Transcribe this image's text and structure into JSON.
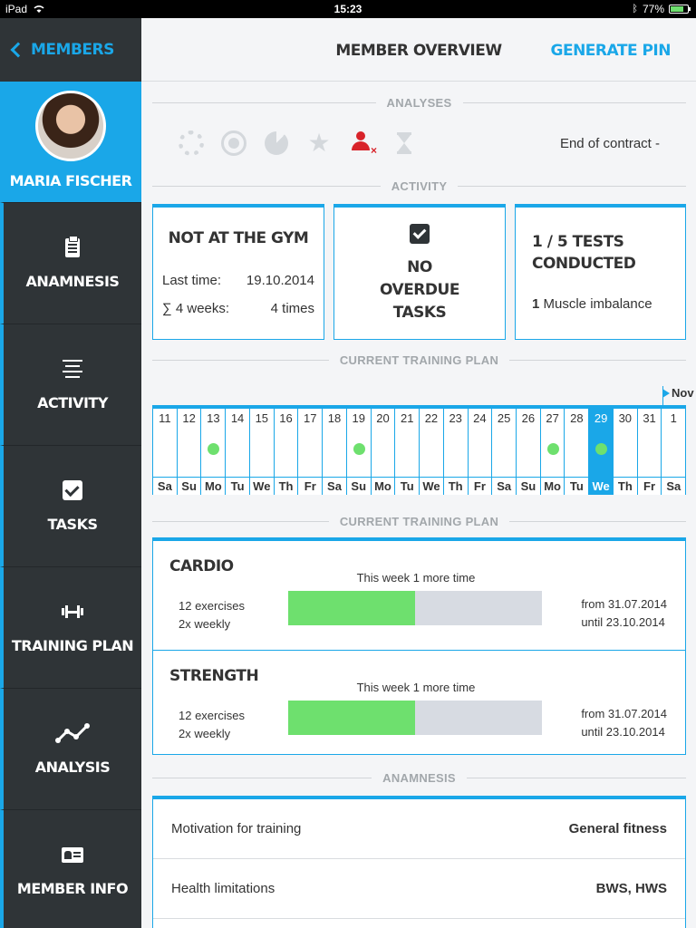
{
  "status_bar": {
    "device": "iPad",
    "time": "15:23",
    "battery": "77%",
    "battery_level": 0.77
  },
  "sidebar": {
    "back_label": "MEMBERS",
    "profile_name": "MARIA FISCHER",
    "items": [
      {
        "label": "ANAMNESIS",
        "icon": "clipboard-icon"
      },
      {
        "label": "ACTIVITY",
        "icon": "list-icon"
      },
      {
        "label": "TASKS",
        "icon": "checkbox-icon"
      },
      {
        "label": "TRAINING PLAN",
        "icon": "dumbbell-icon"
      },
      {
        "label": "ANALYSIS",
        "icon": "line-chart-icon"
      },
      {
        "label": "MEMBER INFO",
        "icon": "id-card-icon"
      }
    ]
  },
  "header": {
    "title": "MEMBER OVERVIEW",
    "action": "GENERATE PIN"
  },
  "analyses": {
    "heading": "ANALYSES",
    "icons": [
      "dotted-ring-icon",
      "target-icon",
      "pie-icon",
      "star-icon",
      "person-x-icon",
      "hourglass-icon"
    ],
    "end_of_contract": "End of contract -",
    "alert_color": "#d8232a"
  },
  "activity": {
    "heading": "ACTIVITY",
    "gym": {
      "title": "NOT AT THE GYM",
      "last_label": "Last time:",
      "last_value": "19.10.2014",
      "weeks_label": "∑ 4 weeks:",
      "weeks_value": "4 times"
    },
    "tasks": {
      "line1": "NO",
      "line2": "OVERDUE",
      "line3": "TASKS"
    },
    "tests": {
      "line1": "1 / 5 TESTS",
      "line2": "CONDUCTED",
      "count": "1",
      "detail": "Muscle imbalance"
    }
  },
  "calendar": {
    "heading": "CURRENT TRAINING PLAN",
    "month_marker": "Nov",
    "days": [
      {
        "num": "11",
        "dn": "Sa",
        "dot": false,
        "today": false
      },
      {
        "num": "12",
        "dn": "Su",
        "dot": false,
        "today": false
      },
      {
        "num": "13",
        "dn": "Mo",
        "dot": true,
        "today": false
      },
      {
        "num": "14",
        "dn": "Tu",
        "dot": false,
        "today": false
      },
      {
        "num": "15",
        "dn": "We",
        "dot": false,
        "today": false
      },
      {
        "num": "16",
        "dn": "Th",
        "dot": false,
        "today": false
      },
      {
        "num": "17",
        "dn": "Fr",
        "dot": false,
        "today": false
      },
      {
        "num": "18",
        "dn": "Sa",
        "dot": false,
        "today": false
      },
      {
        "num": "19",
        "dn": "Su",
        "dot": true,
        "today": false
      },
      {
        "num": "20",
        "dn": "Mo",
        "dot": false,
        "today": false
      },
      {
        "num": "21",
        "dn": "Tu",
        "dot": false,
        "today": false
      },
      {
        "num": "22",
        "dn": "We",
        "dot": false,
        "today": false
      },
      {
        "num": "23",
        "dn": "Th",
        "dot": false,
        "today": false
      },
      {
        "num": "24",
        "dn": "Fr",
        "dot": false,
        "today": false
      },
      {
        "num": "25",
        "dn": "Sa",
        "dot": false,
        "today": false
      },
      {
        "num": "26",
        "dn": "Su",
        "dot": false,
        "today": false
      },
      {
        "num": "27",
        "dn": "Mo",
        "dot": true,
        "today": false
      },
      {
        "num": "28",
        "dn": "Tu",
        "dot": false,
        "today": false
      },
      {
        "num": "29",
        "dn": "We",
        "dot": true,
        "today": true
      },
      {
        "num": "30",
        "dn": "Th",
        "dot": false,
        "today": false
      },
      {
        "num": "31",
        "dn": "Fr",
        "dot": false,
        "today": false
      },
      {
        "num": "1",
        "dn": "Sa",
        "dot": false,
        "today": false
      }
    ]
  },
  "training_plan": {
    "heading": "CURRENT TRAINING PLAN",
    "plans": [
      {
        "name": "CARDIO",
        "hint": "This week 1 more time",
        "exercises": "12 exercises",
        "frequency": "2x weekly",
        "progress": 0.5,
        "from": "from 31.07.2014",
        "until": "until 23.10.2014"
      },
      {
        "name": "STRENGTH",
        "hint": "This week 1 more time",
        "exercises": "12 exercises",
        "frequency": "2x weekly",
        "progress": 0.5,
        "from": "from 31.07.2014",
        "until": "until 23.10.2014"
      }
    ]
  },
  "anamnesis": {
    "heading": "ANAMNESIS",
    "rows": [
      {
        "label": "Motivation for training",
        "value": "General fitness"
      },
      {
        "label": "Health limitations",
        "value": "BWS, HWS"
      }
    ]
  },
  "colors": {
    "accent": "#1aa7e8",
    "sidebar": "#2f3437",
    "progress": "#6ee06e",
    "track": "#d7dbe2"
  }
}
